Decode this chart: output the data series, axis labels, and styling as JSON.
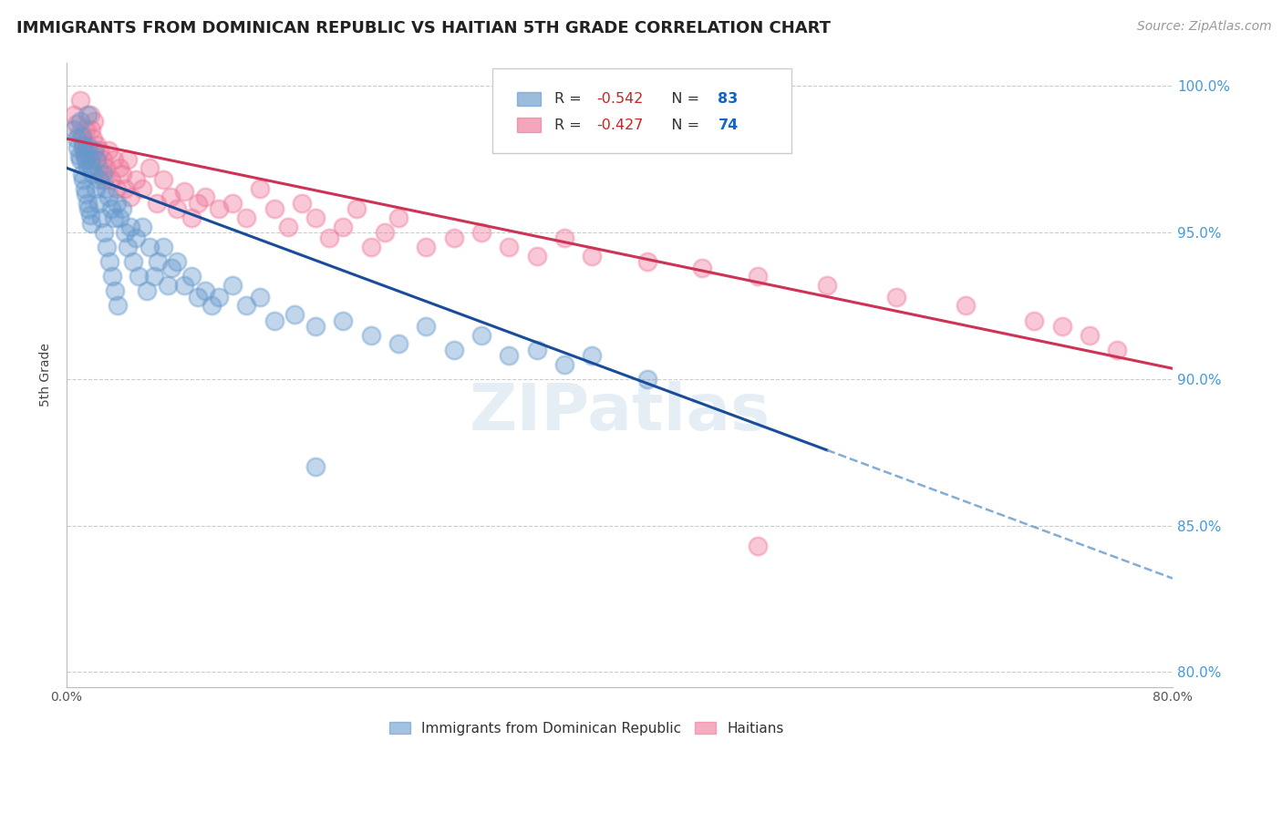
{
  "title": "IMMIGRANTS FROM DOMINICAN REPUBLIC VS HAITIAN 5TH GRADE CORRELATION CHART",
  "source": "Source: ZipAtlas.com",
  "ylabel": "5th Grade",
  "xlim": [
    0.0,
    0.8
  ],
  "ylim": [
    0.795,
    1.008
  ],
  "yticks": [
    0.8,
    0.85,
    0.9,
    0.95,
    1.0
  ],
  "ytick_labels": [
    "80.0%",
    "85.0%",
    "90.0%",
    "95.0%",
    "100.0%"
  ],
  "xticks": [
    0.0,
    0.1,
    0.2,
    0.3,
    0.4,
    0.5,
    0.6,
    0.7,
    0.8
  ],
  "xtick_labels": [
    "0.0%",
    "",
    "",
    "",
    "",
    "",
    "",
    "",
    "80.0%"
  ],
  "blue_R": -0.542,
  "blue_N": 83,
  "pink_R": -0.427,
  "pink_N": 74,
  "blue_color": "#6699cc",
  "pink_color": "#ee7799",
  "trend_blue_solid_color": "#1a4d99",
  "trend_pink_solid_color": "#cc3355",
  "legend_label_blue": "Immigrants from Dominican Republic",
  "legend_label_pink": "Haitians",
  "blue_scatter_x": [
    0.005,
    0.007,
    0.008,
    0.009,
    0.01,
    0.01,
    0.011,
    0.011,
    0.012,
    0.012,
    0.013,
    0.013,
    0.014,
    0.014,
    0.015,
    0.015,
    0.015,
    0.016,
    0.016,
    0.017,
    0.017,
    0.018,
    0.018,
    0.019,
    0.02,
    0.021,
    0.022,
    0.023,
    0.024,
    0.025,
    0.026,
    0.027,
    0.028,
    0.029,
    0.03,
    0.031,
    0.032,
    0.033,
    0.034,
    0.035,
    0.036,
    0.037,
    0.038,
    0.04,
    0.042,
    0.044,
    0.046,
    0.048,
    0.05,
    0.052,
    0.055,
    0.058,
    0.06,
    0.063,
    0.066,
    0.07,
    0.073,
    0.076,
    0.08,
    0.085,
    0.09,
    0.095,
    0.1,
    0.105,
    0.11,
    0.12,
    0.13,
    0.14,
    0.15,
    0.165,
    0.18,
    0.2,
    0.22,
    0.24,
    0.26,
    0.28,
    0.3,
    0.32,
    0.34,
    0.36,
    0.38,
    0.42,
    0.18
  ],
  "blue_scatter_y": [
    0.985,
    0.982,
    0.979,
    0.976,
    0.988,
    0.975,
    0.983,
    0.97,
    0.98,
    0.968,
    0.977,
    0.965,
    0.975,
    0.963,
    0.99,
    0.972,
    0.96,
    0.979,
    0.958,
    0.975,
    0.956,
    0.972,
    0.953,
    0.97,
    0.978,
    0.965,
    0.975,
    0.96,
    0.968,
    0.955,
    0.97,
    0.95,
    0.965,
    0.945,
    0.962,
    0.94,
    0.958,
    0.935,
    0.955,
    0.93,
    0.96,
    0.925,
    0.955,
    0.958,
    0.95,
    0.945,
    0.952,
    0.94,
    0.948,
    0.935,
    0.952,
    0.93,
    0.945,
    0.935,
    0.94,
    0.945,
    0.932,
    0.938,
    0.94,
    0.932,
    0.935,
    0.928,
    0.93,
    0.925,
    0.928,
    0.932,
    0.925,
    0.928,
    0.92,
    0.922,
    0.918,
    0.92,
    0.915,
    0.912,
    0.918,
    0.91,
    0.915,
    0.908,
    0.91,
    0.905,
    0.908,
    0.9,
    0.87
  ],
  "pink_scatter_x": [
    0.005,
    0.007,
    0.009,
    0.01,
    0.011,
    0.012,
    0.013,
    0.014,
    0.015,
    0.016,
    0.017,
    0.018,
    0.019,
    0.02,
    0.021,
    0.022,
    0.023,
    0.024,
    0.025,
    0.026,
    0.027,
    0.028,
    0.03,
    0.032,
    0.034,
    0.036,
    0.038,
    0.04,
    0.042,
    0.044,
    0.046,
    0.05,
    0.055,
    0.06,
    0.065,
    0.07,
    0.075,
    0.08,
    0.085,
    0.09,
    0.095,
    0.1,
    0.11,
    0.12,
    0.13,
    0.14,
    0.15,
    0.16,
    0.17,
    0.18,
    0.19,
    0.2,
    0.21,
    0.22,
    0.23,
    0.24,
    0.26,
    0.28,
    0.3,
    0.32,
    0.34,
    0.36,
    0.38,
    0.42,
    0.46,
    0.5,
    0.55,
    0.6,
    0.65,
    0.7,
    0.72,
    0.74,
    0.76,
    0.5
  ],
  "pink_scatter_y": [
    0.99,
    0.987,
    0.984,
    0.995,
    0.982,
    0.979,
    0.976,
    0.985,
    0.98,
    0.977,
    0.99,
    0.985,
    0.982,
    0.988,
    0.975,
    0.98,
    0.972,
    0.978,
    0.97,
    0.975,
    0.968,
    0.972,
    0.978,
    0.968,
    0.975,
    0.965,
    0.972,
    0.97,
    0.965,
    0.975,
    0.962,
    0.968,
    0.965,
    0.972,
    0.96,
    0.968,
    0.962,
    0.958,
    0.964,
    0.955,
    0.96,
    0.962,
    0.958,
    0.96,
    0.955,
    0.965,
    0.958,
    0.952,
    0.96,
    0.955,
    0.948,
    0.952,
    0.958,
    0.945,
    0.95,
    0.955,
    0.945,
    0.948,
    0.95,
    0.945,
    0.942,
    0.948,
    0.942,
    0.94,
    0.938,
    0.935,
    0.932,
    0.928,
    0.925,
    0.92,
    0.918,
    0.915,
    0.91,
    0.843
  ],
  "watermark_text": "ZIPatlas",
  "background_color": "#ffffff",
  "grid_color": "#cccccc",
  "right_yaxis_color": "#4499dd",
  "title_fontsize": 13,
  "label_fontsize": 10,
  "tick_fontsize": 10,
  "source_fontsize": 10
}
